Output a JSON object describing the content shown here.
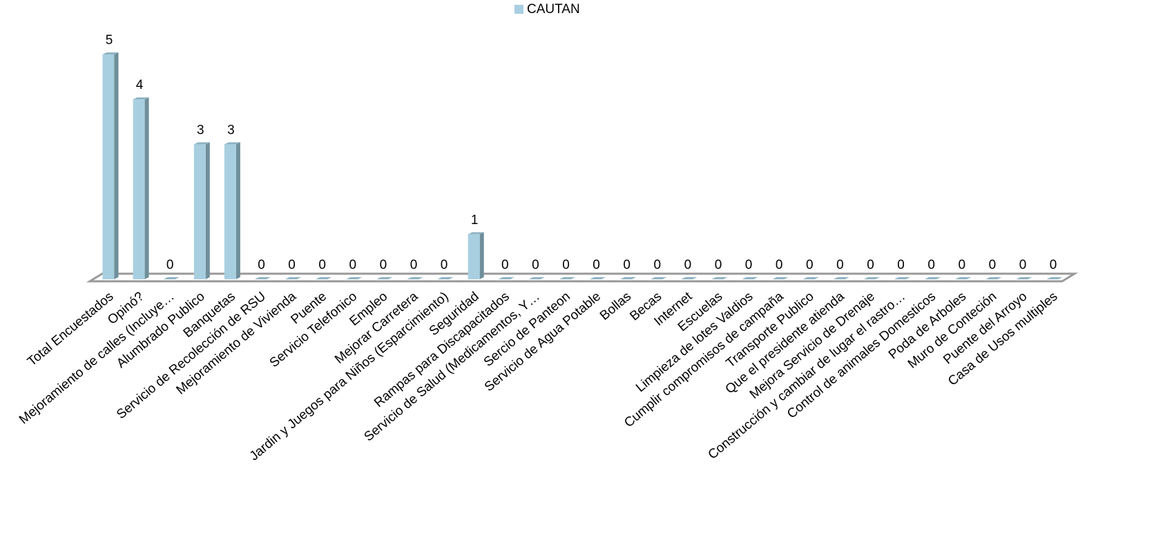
{
  "chart_data": {
    "type": "bar",
    "categories": [
      "Total Encuestados",
      "Opinó?",
      "Mejoramiento de calles (Incluye…",
      "Alumbrado Publico",
      "Banquetas",
      "Servicio de Recolección de RSU",
      "Mejoramiento de Vivienda",
      "Puente",
      "Servicio Telefonico",
      "Empleo",
      "Mejorar Carretera",
      "Jardin y Juegos para Niños (Esparcimiento)",
      "Seguridad",
      "Rampas para Discapacitados",
      "Servicio de Salud (Medicamentos, Y…",
      "Sercio de Panteon",
      "Servicio de Agua Potable",
      "Bollas",
      "Becas",
      "Internet",
      "Escuelas",
      "Limpieza de lotes Valdios",
      "Cumplir compromisos de campaña",
      "Transporte Publico",
      "Que el presidente atienda",
      "Mejora Servicio de Drenaje",
      "Construcción y cambiar de lugar el rastro…",
      "Control de animales Domesticos",
      "Poda de Arboles",
      "Muro de Conteción",
      "Puente del Arroyo",
      "Casa de Usos multiples"
    ],
    "series": [
      {
        "name": "CAUTAN",
        "color": "#a8cfe0",
        "values": [
          5,
          4,
          0,
          3,
          3,
          0,
          0,
          0,
          0,
          0,
          0,
          0,
          1,
          0,
          0,
          0,
          0,
          0,
          0,
          0,
          0,
          0,
          0,
          0,
          0,
          0,
          0,
          0,
          0,
          0,
          0,
          0
        ]
      }
    ],
    "ylim": [
      0,
      5
    ],
    "legend": "top"
  }
}
